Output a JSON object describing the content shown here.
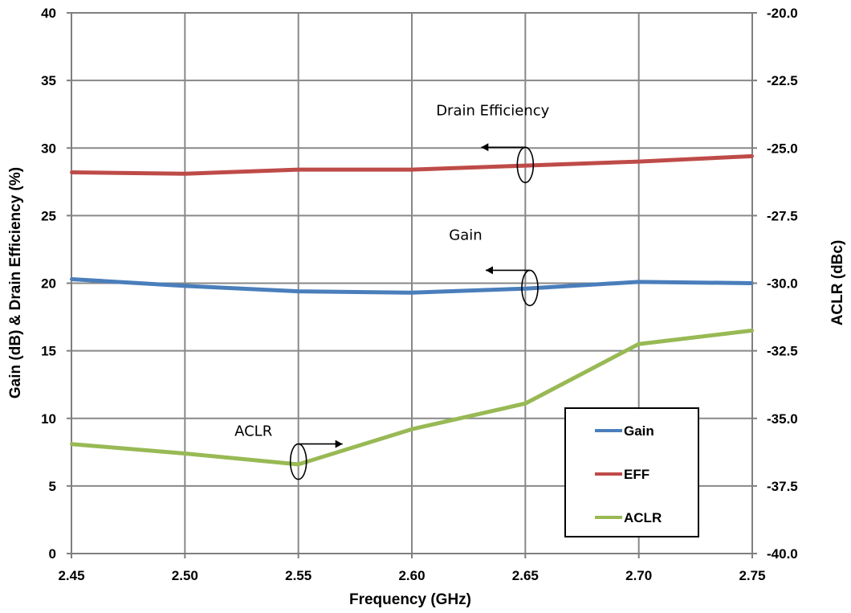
{
  "chart_data": {
    "type": "line",
    "title": "",
    "xlabel": "Frequency (GHz)",
    "ylabel_left": "Gain (dB) & Drain Efficiency (%)",
    "ylabel_right": "ACLR (dBc)",
    "xlim": [
      2.45,
      2.75
    ],
    "ylim_left": [
      0,
      40
    ],
    "ylim_right": [
      -40.0,
      -20.0
    ],
    "grid": true,
    "x_ticks": [
      "2.45",
      "2.50",
      "2.55",
      "2.60",
      "2.65",
      "2.70",
      "2.75"
    ],
    "x_tick_values": [
      2.45,
      2.5,
      2.55,
      2.6,
      2.65,
      2.7,
      2.75
    ],
    "y_left_ticks": [
      "0",
      "5",
      "10",
      "15",
      "20",
      "25",
      "30",
      "35",
      "40"
    ],
    "y_left_tick_values": [
      0,
      5,
      10,
      15,
      20,
      25,
      30,
      35,
      40
    ],
    "y_right_ticks": [
      "-40.0",
      "-37.5",
      "-35.0",
      "-32.5",
      "-30.0",
      "-27.5",
      "-25.0",
      "-22.5",
      "-20.0"
    ],
    "y_right_tick_values": [
      -40.0,
      -37.5,
      -35.0,
      -32.5,
      -30.0,
      -27.5,
      -25.0,
      -22.5,
      -20.0
    ],
    "series": [
      {
        "name": "Gain",
        "axis": "left",
        "color": "#4a7ebb",
        "x": [
          2.45,
          2.5,
          2.55,
          2.6,
          2.65,
          2.7,
          2.75
        ],
        "values": [
          20.3,
          19.8,
          19.4,
          19.3,
          19.6,
          20.1,
          20.0
        ]
      },
      {
        "name": "EFF",
        "axis": "left",
        "color": "#be4b48",
        "x": [
          2.45,
          2.5,
          2.55,
          2.6,
          2.65,
          2.7,
          2.75
        ],
        "values": [
          28.2,
          28.1,
          28.4,
          28.4,
          28.7,
          29.0,
          29.4
        ]
      },
      {
        "name": "ACLR",
        "axis": "right",
        "color": "#98b954",
        "x": [
          2.45,
          2.5,
          2.55,
          2.6,
          2.65,
          2.7,
          2.75
        ],
        "values": [
          -35.95,
          -36.3,
          -36.7,
          -35.4,
          -34.45,
          -32.25,
          -31.75
        ]
      }
    ],
    "legend": {
      "placement": "bottom-right",
      "entries": [
        "Gain",
        "EFF",
        "ACLR"
      ]
    },
    "annotations": [
      {
        "text": "Drain Efficiency",
        "series": "EFF",
        "points_to": "left axis",
        "x": 2.65,
        "y": 28.75,
        "axis": "left"
      },
      {
        "text": "Gain",
        "series": "Gain",
        "points_to": "left axis",
        "x": 2.652,
        "y": 19.65,
        "axis": "left"
      },
      {
        "text": "ACLR",
        "series": "ACLR",
        "points_to": "right axis",
        "x": 2.55,
        "y": -36.6,
        "axis": "right"
      }
    ]
  }
}
